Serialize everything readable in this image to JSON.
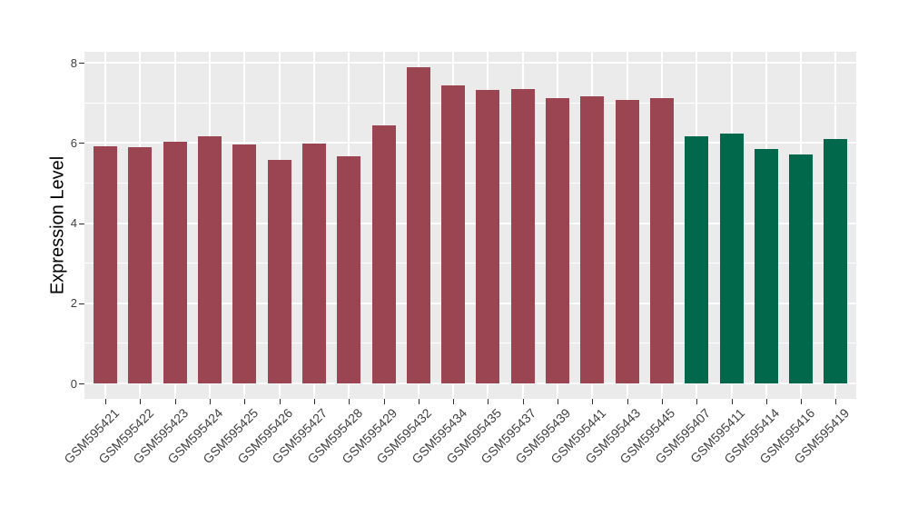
{
  "chart_data": {
    "type": "bar",
    "title": "",
    "xlabel": "",
    "ylabel": "Expression Level",
    "ylim": [
      0,
      8.3
    ],
    "yticks": [
      0,
      2,
      4,
      6,
      8
    ],
    "yticks_minor": [
      1,
      3,
      5,
      7
    ],
    "grid": "on",
    "legend": "none",
    "panel_background": "#EBEBEB",
    "gridline_color": "#FFFFFF",
    "tick_color": "#333333",
    "tick_label_color": "#404040",
    "group_colors": {
      "A": "#9B4452",
      "B": "#02684C"
    },
    "categories": [
      "GSM595421",
      "GSM595422",
      "GSM595423",
      "GSM595424",
      "GSM595425",
      "GSM595426",
      "GSM595427",
      "GSM595428",
      "GSM595429",
      "GSM595432",
      "GSM595434",
      "GSM595435",
      "GSM595437",
      "GSM595439",
      "GSM595441",
      "GSM595443",
      "GSM595445",
      "GSM595407",
      "GSM595411",
      "GSM595414",
      "GSM595416",
      "GSM595419"
    ],
    "bars": [
      {
        "label": "GSM595421",
        "value": 5.92,
        "group": "A"
      },
      {
        "label": "GSM595422",
        "value": 5.89,
        "group": "A"
      },
      {
        "label": "GSM595423",
        "value": 6.03,
        "group": "A"
      },
      {
        "label": "GSM595424",
        "value": 6.17,
        "group": "A"
      },
      {
        "label": "GSM595425",
        "value": 5.96,
        "group": "A"
      },
      {
        "label": "GSM595426",
        "value": 5.57,
        "group": "A"
      },
      {
        "label": "GSM595427",
        "value": 5.99,
        "group": "A"
      },
      {
        "label": "GSM595428",
        "value": 5.66,
        "group": "A"
      },
      {
        "label": "GSM595429",
        "value": 6.45,
        "group": "A"
      },
      {
        "label": "GSM595432",
        "value": 7.9,
        "group": "A"
      },
      {
        "label": "GSM595434",
        "value": 7.44,
        "group": "A"
      },
      {
        "label": "GSM595435",
        "value": 7.33,
        "group": "A"
      },
      {
        "label": "GSM595437",
        "value": 7.35,
        "group": "A"
      },
      {
        "label": "GSM595439",
        "value": 7.11,
        "group": "A"
      },
      {
        "label": "GSM595441",
        "value": 7.16,
        "group": "A"
      },
      {
        "label": "GSM595443",
        "value": 7.07,
        "group": "A"
      },
      {
        "label": "GSM595445",
        "value": 7.12,
        "group": "A"
      },
      {
        "label": "GSM595407",
        "value": 6.17,
        "group": "B"
      },
      {
        "label": "GSM595411",
        "value": 6.23,
        "group": "B"
      },
      {
        "label": "GSM595414",
        "value": 5.85,
        "group": "B"
      },
      {
        "label": "GSM595416",
        "value": 5.71,
        "group": "B"
      },
      {
        "label": "GSM595419",
        "value": 6.1,
        "group": "B"
      }
    ]
  }
}
